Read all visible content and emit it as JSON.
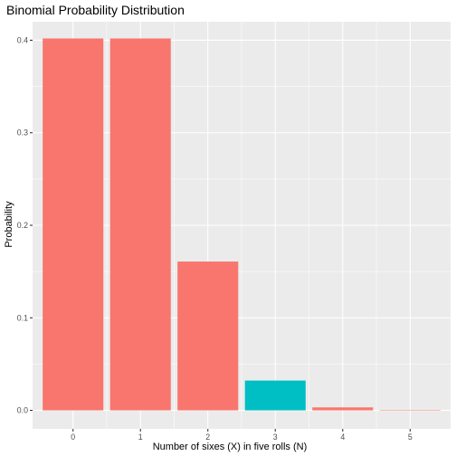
{
  "chart_data": {
    "type": "bar",
    "title": "Binomial Probability Distribution",
    "xlabel": "Number of sixes (X) in five rolls (N)",
    "ylabel": "Probability",
    "categories": [
      "0",
      "1",
      "2",
      "3",
      "4",
      "5"
    ],
    "values": [
      0.4019,
      0.4019,
      0.1608,
      0.0322,
      0.0032,
      0.0001
    ],
    "bar_colors": [
      "#F8766D",
      "#F8766D",
      "#F8766D",
      "#00BFC4",
      "#F8766D",
      "#F8766D"
    ],
    "ylim": [
      -0.02,
      0.42
    ],
    "yticks": [
      0.0,
      0.1,
      0.2,
      0.3,
      0.4
    ],
    "ytick_labels": [
      "0.0",
      "0.1",
      "0.2",
      "0.3",
      "0.4"
    ],
    "grid": true,
    "legend": "none",
    "panel_color": "#EBEBEB",
    "grid_color": "#FFFFFF"
  }
}
